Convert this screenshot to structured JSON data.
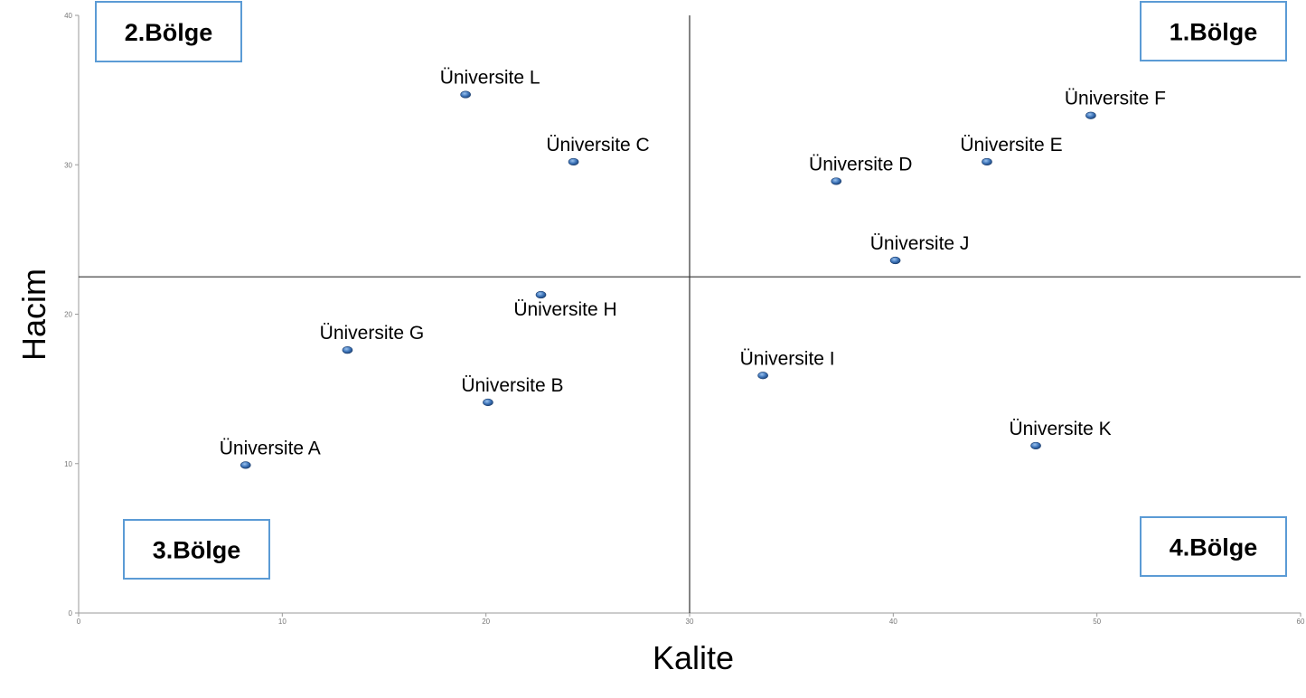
{
  "chart_data": {
    "type": "scatter",
    "xlabel": "Kalite",
    "ylabel": "Hacim",
    "xlim": [
      0,
      60
    ],
    "ylim": [
      0,
      40
    ],
    "xticks": [
      0,
      10,
      20,
      30,
      40,
      50,
      60
    ],
    "yticks": [
      0,
      10,
      20,
      30,
      40
    ],
    "divider_x": 30,
    "divider_y": 22.5,
    "grid": false,
    "quadrants": [
      {
        "label": "1.Bölge",
        "position": "top-right"
      },
      {
        "label": "2.Bölge",
        "position": "top-left"
      },
      {
        "label": "3.Bölge",
        "position": "bottom-left"
      },
      {
        "label": "4.Bölge",
        "position": "bottom-right"
      }
    ],
    "points": [
      {
        "label": "Üniversite A",
        "x": 8.2,
        "y": 9.9,
        "label_pos": "above"
      },
      {
        "label": "Üniversite B",
        "x": 20.1,
        "y": 14.1,
        "label_pos": "above"
      },
      {
        "label": "Üniversite C",
        "x": 24.3,
        "y": 30.2,
        "label_pos": "above"
      },
      {
        "label": "Üniversite D",
        "x": 37.2,
        "y": 28.9,
        "label_pos": "above"
      },
      {
        "label": "Üniversite E",
        "x": 44.6,
        "y": 30.2,
        "label_pos": "above"
      },
      {
        "label": "Üniversite F",
        "x": 49.7,
        "y": 33.3,
        "label_pos": "above"
      },
      {
        "label": "Üniversite G",
        "x": 13.2,
        "y": 17.6,
        "label_pos": "above"
      },
      {
        "label": "Üniversite H",
        "x": 22.7,
        "y": 21.3,
        "label_pos": "below"
      },
      {
        "label": "Üniversite I",
        "x": 33.6,
        "y": 15.9,
        "label_pos": "above"
      },
      {
        "label": "Üniversite J",
        "x": 40.1,
        "y": 23.6,
        "label_pos": "above"
      },
      {
        "label": "Üniversite K",
        "x": 47.0,
        "y": 11.2,
        "label_pos": "above"
      },
      {
        "label": "Üniversite L",
        "x": 19.0,
        "y": 34.7,
        "label_pos": "above"
      }
    ],
    "colors": {
      "marker": "#2e5f9e",
      "marker_highlight": "#9cc3ee",
      "box_border": "#5b9bd5",
      "axis": "#9a9a9a",
      "divider": "#333333"
    }
  }
}
